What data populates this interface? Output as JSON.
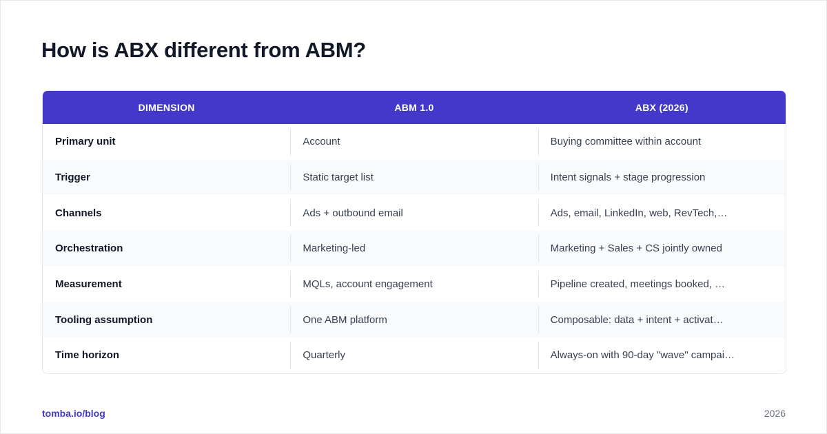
{
  "header": {
    "title": "How is ABX different from ABM?"
  },
  "table": {
    "columns": [
      "DIMENSION",
      "ABM 1.0",
      "ABX (2026)"
    ],
    "rows": [
      [
        "Primary unit",
        "Account",
        "Buying committee within account"
      ],
      [
        "Trigger",
        "Static target list",
        "Intent signals + stage progression"
      ],
      [
        "Channels",
        "Ads + outbound email",
        "Ads, email, LinkedIn, web, RevTech,…"
      ],
      [
        "Orchestration",
        "Marketing-led",
        "Marketing + Sales + CS jointly owned"
      ],
      [
        "Measurement",
        "MQLs, account engagement",
        "Pipeline created, meetings booked, …"
      ],
      [
        "Tooling assumption",
        "One ABM platform",
        "Composable: data + intent + activat…"
      ],
      [
        "Time horizon",
        "Quarterly",
        "Always-on with 90-day \"wave\" campai…"
      ]
    ]
  },
  "footer": {
    "link": "tomba.io/blog",
    "year": "2026"
  }
}
